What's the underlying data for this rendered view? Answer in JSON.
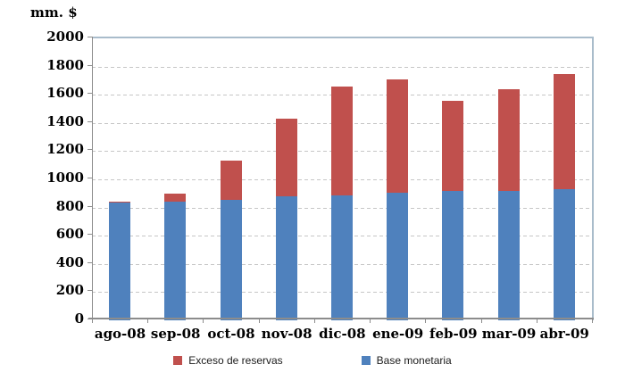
{
  "chart_data": {
    "type": "bar",
    "stacked": true,
    "unit_label": "mm. $",
    "categories": [
      "ago-08",
      "sep-08",
      "oct-08",
      "nov-08",
      "dic-08",
      "ene-09",
      "feb-09",
      "mar-09",
      "abr-09"
    ],
    "series": [
      {
        "name": "Base monetaria",
        "color": "#4F81BD",
        "values": [
          835,
          840,
          855,
          880,
          885,
          905,
          915,
          920,
          930
        ]
      },
      {
        "name": "Exceso de reservas",
        "color": "#C0504D",
        "values": [
          5,
          60,
          275,
          550,
          775,
          805,
          645,
          720,
          820
        ]
      }
    ],
    "totals": [
      840,
      900,
      1130,
      1430,
      1660,
      1710,
      1560,
      1640,
      1750
    ],
    "ylim": [
      0,
      2000
    ],
    "ytick_step": 200,
    "ytick_labels": [
      "0",
      "200",
      "400",
      "600",
      "800",
      "1000",
      "1200",
      "1400",
      "1600",
      "1800",
      "2000"
    ],
    "grid": "horizontal-dashed",
    "legend_position": "bottom"
  },
  "legend": {
    "items": [
      {
        "label": "Exceso de reservas",
        "color": "#C0504D"
      },
      {
        "label": "Base monetaria",
        "color": "#4F81BD"
      }
    ]
  },
  "colors": {
    "bar_blue": "#4F81BD",
    "bar_red": "#C0504D",
    "gridline": "#C6C6C6",
    "axis_line": "#8C8C8C",
    "plot_border": "#A9BCCB",
    "text": "#000000"
  }
}
